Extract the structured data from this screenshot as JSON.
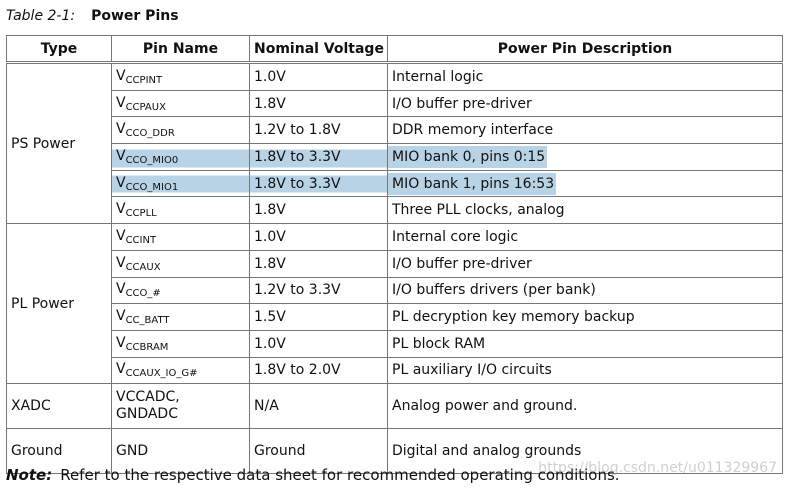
{
  "caption": {
    "label": "Table 2-1:",
    "title": "Power Pins"
  },
  "table": {
    "headers": [
      "Type",
      "Pin Name",
      "Nominal Voltage",
      "Power Pin Description"
    ],
    "groups": [
      {
        "type": "PS Power",
        "rows": [
          {
            "pin": {
              "base": "V",
              "sub": "CCPINT"
            },
            "voltage": "1.0V",
            "description": "Internal logic"
          },
          {
            "pin": {
              "base": "V",
              "sub": "CCPAUX"
            },
            "voltage": "1.8V",
            "description": "I/O buffer pre-driver"
          },
          {
            "pin": {
              "base": "V",
              "sub": "CCO_DDR"
            },
            "voltage": "1.2V to 1.8V",
            "description": "DDR memory interface"
          },
          {
            "pin": {
              "base": "V",
              "sub": "CCO_MIO0"
            },
            "voltage": "1.8V to 3.3V",
            "description": "MIO bank 0, pins 0:15",
            "highlight": true
          },
          {
            "pin": {
              "base": "V",
              "sub": "CCO_MIO1"
            },
            "voltage": "1.8V to 3.3V",
            "description": "MIO bank 1, pins 16:53",
            "highlight": true
          },
          {
            "pin": {
              "base": "V",
              "sub": "CCPLL"
            },
            "voltage": "1.8V",
            "description": "Three PLL clocks, analog"
          }
        ]
      },
      {
        "type": "PL Power",
        "rows": [
          {
            "pin": {
              "base": "V",
              "sub": "CCINT"
            },
            "voltage": "1.0V",
            "description": "Internal core logic"
          },
          {
            "pin": {
              "base": "V",
              "sub": "CCAUX"
            },
            "voltage": "1.8V",
            "description": "I/O buffer pre-driver"
          },
          {
            "pin": {
              "base": "V",
              "sub": "CCO_#"
            },
            "voltage": "1.2V to 3.3V",
            "description": "I/O buffers drivers (per bank)"
          },
          {
            "pin": {
              "base": "V",
              "sub": "CC_BATT"
            },
            "voltage": "1.5V",
            "description": "PL decryption key memory backup"
          },
          {
            "pin": {
              "base": "V",
              "sub": "CCBRAM"
            },
            "voltage": "1.0V",
            "description": "PL block RAM"
          },
          {
            "pin": {
              "base": "V",
              "sub": "CCAUX_IO_G#"
            },
            "voltage": "1.8V to 2.0V",
            "description": "PL auxiliary I/O circuits"
          }
        ]
      },
      {
        "type": "XADC",
        "rows": [
          {
            "pin": "VCCADC, GNDADC",
            "voltage": "N/A",
            "description": "Analog power and ground."
          }
        ]
      },
      {
        "type": "Ground",
        "rows": [
          {
            "pin": "GND",
            "voltage": "Ground",
            "description": "Digital and analog grounds"
          }
        ]
      }
    ]
  },
  "note": {
    "label": "Note:",
    "text": "Refer to the respective data sheet for recommended operating conditions."
  },
  "watermark": "https://blog.csdn.net/u011329967"
}
